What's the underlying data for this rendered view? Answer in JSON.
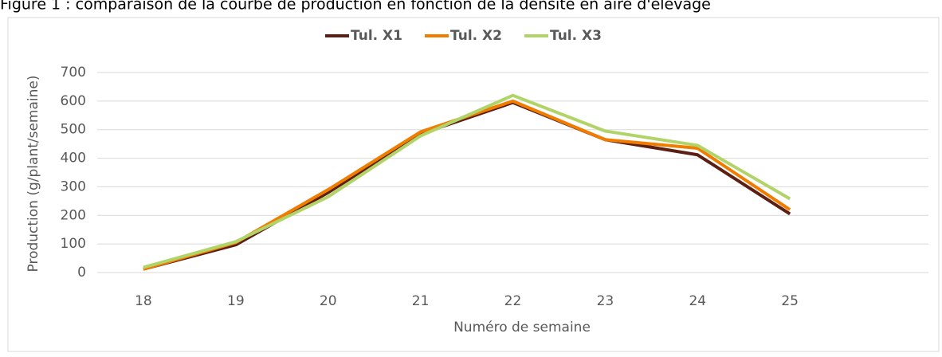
{
  "chart_data": {
    "type": "line",
    "title": "Figure 1 : comparaison de la courbe de production en fonction de la densité en aire d'élevage",
    "x_label": "Numéro de semaine",
    "y_label": "Production (g/plant/semaine)",
    "categories": [
      "18",
      "19",
      "20",
      "21",
      "22",
      "23",
      "24",
      "25",
      null
    ],
    "series": [
      {
        "name": "Tul. X1",
        "color": "#5c1f14",
        "values": [
          12,
          97,
          280,
          485,
          595,
          465,
          412,
          205,
          null
        ]
      },
      {
        "name": "Tul. X2",
        "color": "#f07d00",
        "values": [
          12,
          105,
          290,
          492,
          600,
          465,
          435,
          220,
          null
        ]
      },
      {
        "name": "Tul. X3",
        "color": "#b0d468",
        "values": [
          18,
          108,
          265,
          478,
          620,
          495,
          445,
          258,
          null
        ]
      }
    ],
    "ylim": [
      0,
      700
    ],
    "yticks": [
      0,
      100,
      200,
      300,
      400,
      500,
      600,
      700
    ],
    "grid": true,
    "legend": "top"
  }
}
